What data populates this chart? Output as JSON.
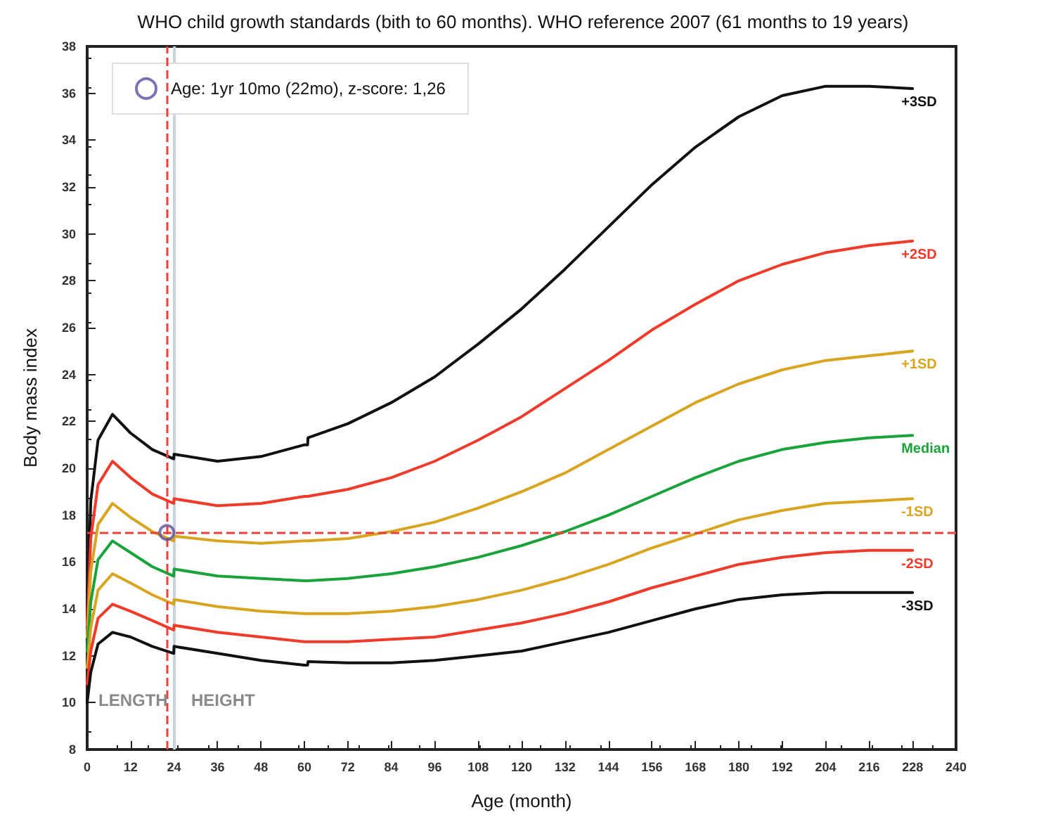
{
  "chart_data": {
    "type": "line",
    "title": "WHO child growth standards (bith to 60 months). WHO reference 2007 (61 months to 19 years)",
    "xlabel": "Age (month)",
    "ylabel": "Body mass index",
    "x": [
      0,
      1,
      3,
      7,
      12,
      18,
      23.9,
      24,
      36,
      48,
      60,
      60.9,
      61,
      72,
      84,
      96,
      108,
      120,
      132,
      144,
      156,
      168,
      180,
      192,
      204,
      216,
      228
    ],
    "series": [
      {
        "name": "+3SD",
        "color": "#111111",
        "values": [
          13.8,
          18.6,
          21.2,
          22.3,
          21.5,
          20.8,
          20.4,
          20.6,
          20.3,
          20.5,
          21.0,
          21.0,
          21.3,
          21.9,
          22.8,
          23.9,
          25.3,
          26.8,
          28.5,
          30.3,
          32.1,
          33.7,
          35.0,
          35.9,
          36.3,
          36.3,
          36.2
        ]
      },
      {
        "name": "+2SD",
        "color": "#f03a2a",
        "values": [
          13.3,
          17.0,
          19.3,
          20.3,
          19.6,
          18.9,
          18.5,
          18.7,
          18.4,
          18.5,
          18.8,
          18.8,
          18.8,
          19.1,
          19.6,
          20.3,
          21.2,
          22.2,
          23.4,
          24.6,
          25.9,
          27.0,
          28.0,
          28.7,
          29.2,
          29.5,
          29.7
        ]
      },
      {
        "name": "+1SD",
        "color": "#d9a521",
        "values": [
          12.8,
          15.6,
          17.6,
          18.5,
          17.9,
          17.3,
          16.9,
          17.1,
          16.9,
          16.8,
          16.9,
          16.9,
          16.9,
          17.0,
          17.3,
          17.7,
          18.3,
          19.0,
          19.8,
          20.8,
          21.8,
          22.8,
          23.6,
          24.2,
          24.6,
          24.8,
          25.0
        ]
      },
      {
        "name": "Median",
        "color": "#1aa33a",
        "values": [
          12.2,
          14.3,
          16.1,
          16.9,
          16.4,
          15.8,
          15.4,
          15.7,
          15.4,
          15.3,
          15.2,
          15.2,
          15.2,
          15.3,
          15.5,
          15.8,
          16.2,
          16.7,
          17.3,
          18.0,
          18.8,
          19.6,
          20.3,
          20.8,
          21.1,
          21.3,
          21.4
        ]
      },
      {
        "name": "-1SD",
        "color": "#d9a521",
        "values": [
          11.5,
          13.2,
          14.8,
          15.5,
          15.1,
          14.6,
          14.2,
          14.4,
          14.1,
          13.9,
          13.8,
          13.8,
          13.8,
          13.8,
          13.9,
          14.1,
          14.4,
          14.8,
          15.3,
          15.9,
          16.6,
          17.2,
          17.8,
          18.2,
          18.5,
          18.6,
          18.7
        ]
      },
      {
        "name": "-2SD",
        "color": "#f03a2a",
        "values": [
          10.8,
          12.2,
          13.6,
          14.2,
          13.9,
          13.5,
          13.1,
          13.3,
          13.0,
          12.8,
          12.6,
          12.6,
          12.6,
          12.6,
          12.7,
          12.8,
          13.1,
          13.4,
          13.8,
          14.3,
          14.9,
          15.4,
          15.9,
          16.2,
          16.4,
          16.5,
          16.5
        ]
      },
      {
        "name": "-3SD",
        "color": "#111111",
        "values": [
          10.0,
          11.3,
          12.5,
          13.0,
          12.8,
          12.4,
          12.1,
          12.4,
          12.1,
          11.8,
          11.6,
          11.6,
          11.75,
          11.7,
          11.7,
          11.8,
          12.0,
          12.2,
          12.6,
          13.0,
          13.5,
          14.0,
          14.4,
          14.6,
          14.7,
          14.7,
          14.7
        ]
      },
      {
        "type": "scatter",
        "name": "Age: 1yr 10mo (22mo), z-score: 1,26",
        "color": "#5a4fa0",
        "marker": "circle",
        "x": [
          22
        ],
        "values": [
          17.26
        ]
      }
    ],
    "ref_lines": [
      {
        "axis": "x",
        "value": 22,
        "color": "#e8403a",
        "line_style": "dashed"
      },
      {
        "axis": "y",
        "value": 17.26,
        "color": "#e8403a",
        "line_style": "dashed"
      }
    ],
    "bands": [
      {
        "axis": "x",
        "from": 23.7,
        "to": 24.5,
        "color": "#c9d3dd"
      }
    ],
    "annotations": [
      "LENGTH",
      "HEIGHT"
    ],
    "xlim": [
      0,
      240
    ],
    "xticks": [
      0,
      12,
      24,
      36,
      48,
      60,
      72,
      84,
      96,
      108,
      120,
      132,
      144,
      156,
      168,
      180,
      192,
      204,
      216,
      228,
      240
    ],
    "ylim": [
      8,
      38
    ],
    "yticks": [
      8,
      10,
      12,
      14,
      16,
      18,
      20,
      22,
      24,
      26,
      28,
      30,
      32,
      34,
      36,
      38
    ],
    "grid": false,
    "legend": "top left",
    "marker": "none",
    "line_style": "solid"
  }
}
